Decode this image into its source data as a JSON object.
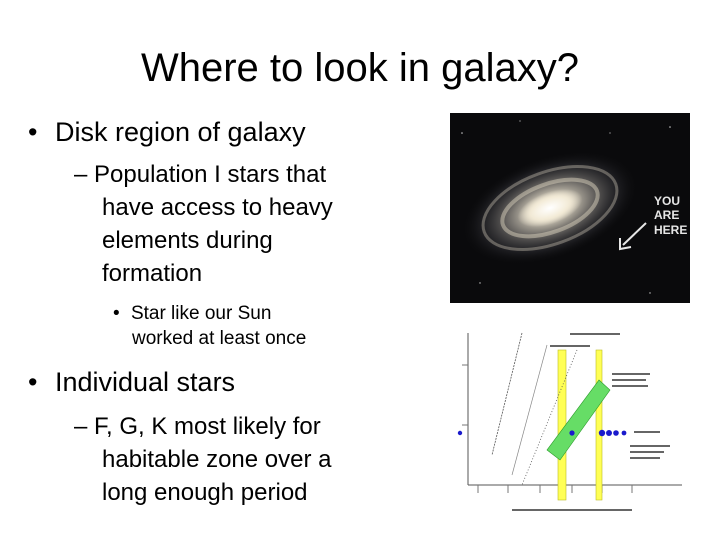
{
  "slide": {
    "title": "Where to look in galaxy?",
    "bullets": [
      {
        "marker": "•",
        "text": "Disk region of galaxy"
      },
      {
        "marker": "–",
        "lines": [
          "Population I stars that",
          "have access to heavy",
          "elements during",
          "formation"
        ]
      },
      {
        "marker": "•",
        "lines": [
          "Star like our Sun",
          "worked at least once"
        ]
      },
      {
        "marker": "•",
        "text": "Individual stars"
      },
      {
        "marker": "–",
        "lines": [
          "F, G, K most likely for",
          "habitable zone over a",
          "long enough period"
        ]
      }
    ]
  },
  "galaxy_image": {
    "annotation": [
      "YOU",
      "ARE",
      "HERE"
    ],
    "colors": {
      "background": "#0a0a0c",
      "glow": "#ece6d8",
      "arrow": "#e6e6e6"
    }
  },
  "habitable_plot": {
    "colors": {
      "band_green": "#66dd66",
      "band_yellow": "#ffff55",
      "points": "#1a1acc",
      "ink": "#555555"
    }
  }
}
